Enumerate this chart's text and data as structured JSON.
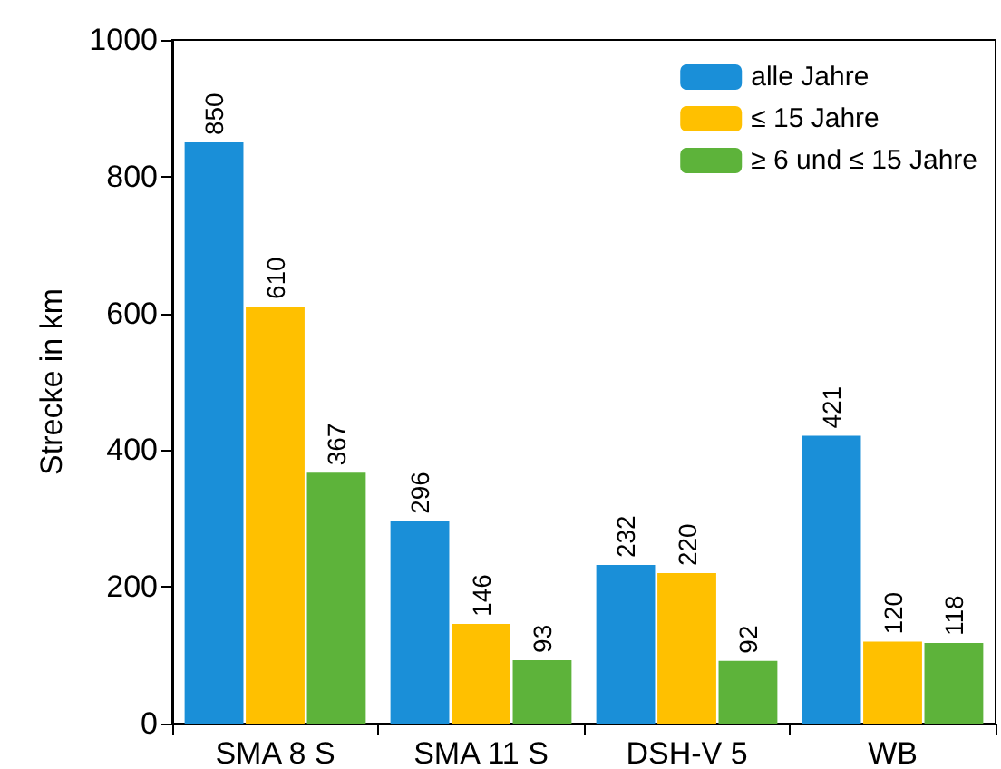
{
  "chart_data": {
    "type": "bar",
    "ylabel": "Strecke in km",
    "categories": [
      "SMA 8 S",
      "SMA 11 S",
      "DSH-V 5",
      "WB"
    ],
    "series": [
      {
        "name": "alle Jahre",
        "color": "#1a8fd8",
        "values": [
          850,
          296,
          232,
          421
        ]
      },
      {
        "name": "≤ 15 Jahre",
        "color": "#ffc000",
        "values": [
          610,
          146,
          220,
          120
        ]
      },
      {
        "name": "≥ 6 und ≤ 15 Jahre",
        "color": "#5db33a",
        "values": [
          367,
          93,
          92,
          118
        ]
      }
    ],
    "ylim": [
      0,
      1000
    ],
    "yticks": [
      0,
      200,
      400,
      600,
      800,
      1000
    ],
    "grid": false,
    "legend": "top right",
    "data_labels": true
  }
}
